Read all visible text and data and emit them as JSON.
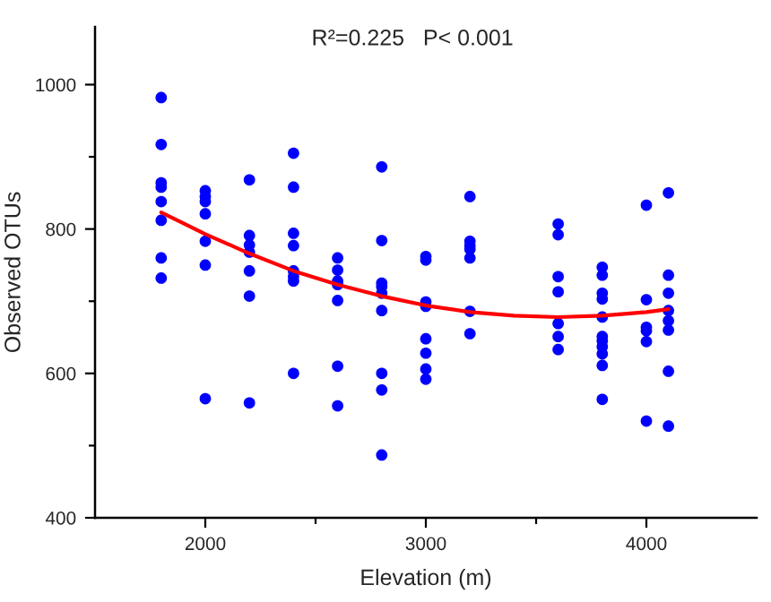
{
  "chart_data": {
    "type": "scatter",
    "xlabel": "Elevation (m)",
    "ylabel": "Observed OTUs",
    "annotations": [
      "R²=0.225   P< 0.001"
    ],
    "xlim": [
      1500,
      4500
    ],
    "xticks": [
      2000,
      {
        "value": 2500,
        "label": null
      },
      3000,
      {
        "value": 3500,
        "label": null
      },
      4000
    ],
    "ylim": [
      400,
      1080
    ],
    "yticks": [
      400,
      {
        "value": 500,
        "label": null
      },
      600,
      {
        "value": 700,
        "label": null
      },
      800,
      {
        "value": 900,
        "label": null
      },
      1000
    ],
    "series": [
      {
        "color": "#0000ff",
        "marker": "circle",
        "x": [
          1800,
          1800,
          1800,
          1800,
          1800,
          1800,
          1800,
          1800,
          2000,
          2000,
          2000,
          2000,
          2000,
          2000,
          2000,
          2200,
          2200,
          2200,
          2200,
          2200,
          2200,
          2200,
          2400,
          2400,
          2400,
          2400,
          2400,
          2400,
          2400,
          2400,
          2600,
          2600,
          2600,
          2600,
          2600,
          2600,
          2600,
          2800,
          2800,
          2800,
          2800,
          2800,
          2800,
          2800,
          2800,
          2800,
          3000,
          3000,
          3000,
          3000,
          3000,
          3000,
          3000,
          3000,
          3200,
          3200,
          3200,
          3200,
          3200,
          3200,
          3200,
          3600,
          3600,
          3600,
          3600,
          3600,
          3600,
          3600,
          3800,
          3800,
          3800,
          3800,
          3800,
          3800,
          3800,
          3800,
          3800,
          3800,
          3800,
          4000,
          4000,
          4000,
          4000,
          4000,
          4000,
          4100,
          4100,
          4100,
          4100,
          4100,
          4100,
          4100,
          4100
        ],
        "values": [
          982,
          917,
          864,
          858,
          838,
          812,
          760,
          732,
          853,
          845,
          838,
          821,
          783,
          750,
          565,
          868,
          791,
          778,
          768,
          742,
          707,
          559,
          905,
          858,
          794,
          777,
          742,
          734,
          728,
          600,
          760,
          743,
          728,
          723,
          701,
          610,
          555,
          886,
          784,
          725,
          720,
          711,
          687,
          600,
          577,
          487,
          762,
          757,
          699,
          693,
          648,
          628,
          606,
          592,
          845,
          783,
          777,
          772,
          760,
          686,
          655,
          807,
          792,
          734,
          713,
          669,
          651,
          633,
          747,
          736,
          711,
          703,
          678,
          651,
          645,
          637,
          627,
          611,
          564,
          833,
          702,
          664,
          659,
          644,
          534,
          850,
          736,
          711,
          687,
          673,
          660,
          603,
          527
        ]
      },
      {
        "type": "line",
        "color": "#ff0000",
        "x": [
          1800,
          2000,
          2200,
          2400,
          2600,
          2800,
          3000,
          3200,
          3400,
          3600,
          3800,
          4000,
          4100
        ],
        "values": [
          823,
          793,
          766,
          742,
          723,
          707,
          694,
          685,
          680,
          678,
          680,
          685,
          689
        ]
      }
    ]
  }
}
